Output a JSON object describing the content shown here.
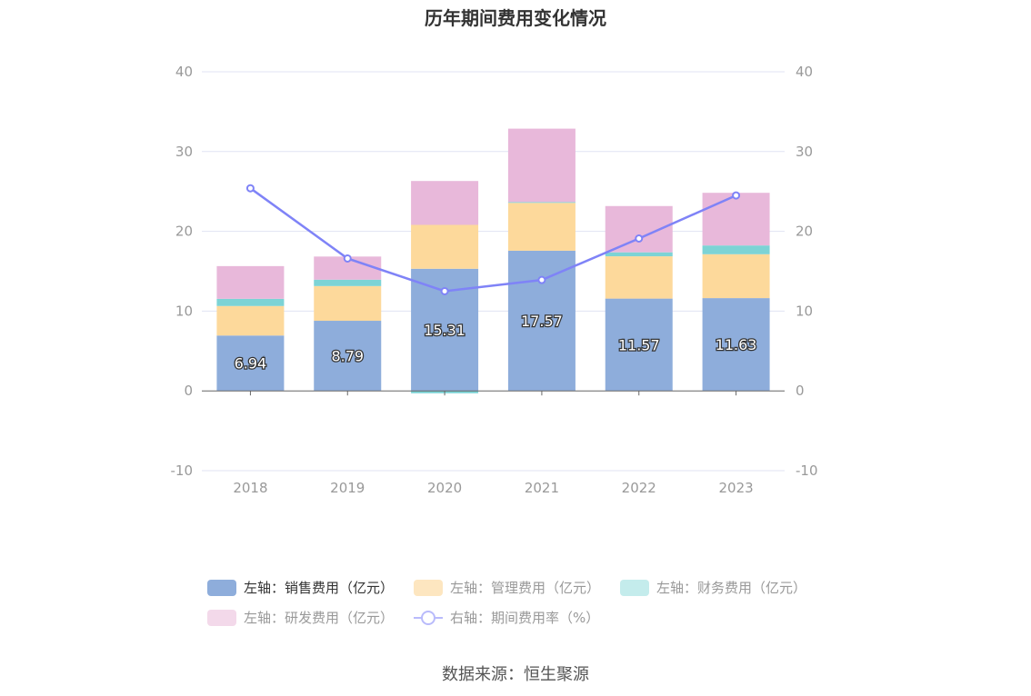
{
  "chart_data": {
    "type": "bar",
    "title": "历年期间费用变化情况",
    "categories": [
      "2018",
      "2019",
      "2020",
      "2021",
      "2022",
      "2023"
    ],
    "left_axis": {
      "ylim": [
        -10,
        40
      ],
      "ticks": [
        "-10",
        "0",
        "10",
        "20",
        "30",
        "40"
      ]
    },
    "right_axis": {
      "ylim": [
        -10,
        40
      ],
      "ticks": [
        "-10",
        "0",
        "10",
        "20",
        "30",
        "40"
      ]
    },
    "grid": true,
    "legend_position": "bottom",
    "series": [
      {
        "name": "左轴：销售费用（亿元）",
        "axis": "left",
        "kind": "bar",
        "stack": "total",
        "color": "#8eaddb",
        "values": [
          6.94,
          8.79,
          15.31,
          17.57,
          11.57,
          11.63
        ],
        "labels": [
          "6.94",
          "8.79",
          "15.31",
          "17.57",
          "11.57",
          "11.63"
        ]
      },
      {
        "name": "左轴：管理费用（亿元）",
        "axis": "left",
        "kind": "bar",
        "stack": "total",
        "color": "#fdd99b",
        "values": [
          3.7,
          4.35,
          5.5,
          6.0,
          5.3,
          5.5
        ]
      },
      {
        "name": "左轴：财务费用（亿元）",
        "axis": "left",
        "kind": "bar",
        "stack": "total",
        "color": "#7dd3d5",
        "values": [
          0.9,
          0.8,
          -0.3,
          0.1,
          0.5,
          1.1
        ]
      },
      {
        "name": "左轴：研发费用（亿元）",
        "axis": "left",
        "kind": "bar",
        "stack": "total",
        "color": "#e8b8da",
        "values": [
          4.1,
          2.9,
          5.5,
          9.2,
          5.8,
          6.6
        ]
      },
      {
        "name": "右轴：期间费用率（%）",
        "axis": "right",
        "kind": "line",
        "color": "#7f83f7",
        "values": [
          25.4,
          16.6,
          12.5,
          13.9,
          19.1,
          24.5
        ]
      }
    ]
  },
  "legend_items": [
    {
      "label": "左轴：销售费用（亿元）",
      "color": "#8eaddb",
      "textColor": "#333333",
      "kind": "bar"
    },
    {
      "label": "左轴：管理费用（亿元）",
      "color": "#fde6c0",
      "textColor": "#999999",
      "kind": "bar"
    },
    {
      "label": "左轴：财务费用（亿元）",
      "color": "#c4ecec",
      "textColor": "#999999",
      "kind": "bar"
    },
    {
      "label": "左轴：研发费用（亿元）",
      "color": "#f3d9ea",
      "textColor": "#999999",
      "kind": "bar"
    },
    {
      "label": "右轴：期间费用率（%）",
      "color": "#b9bbfb",
      "textColor": "#999999",
      "kind": "line"
    }
  ],
  "source": "数据来源：恒生聚源"
}
